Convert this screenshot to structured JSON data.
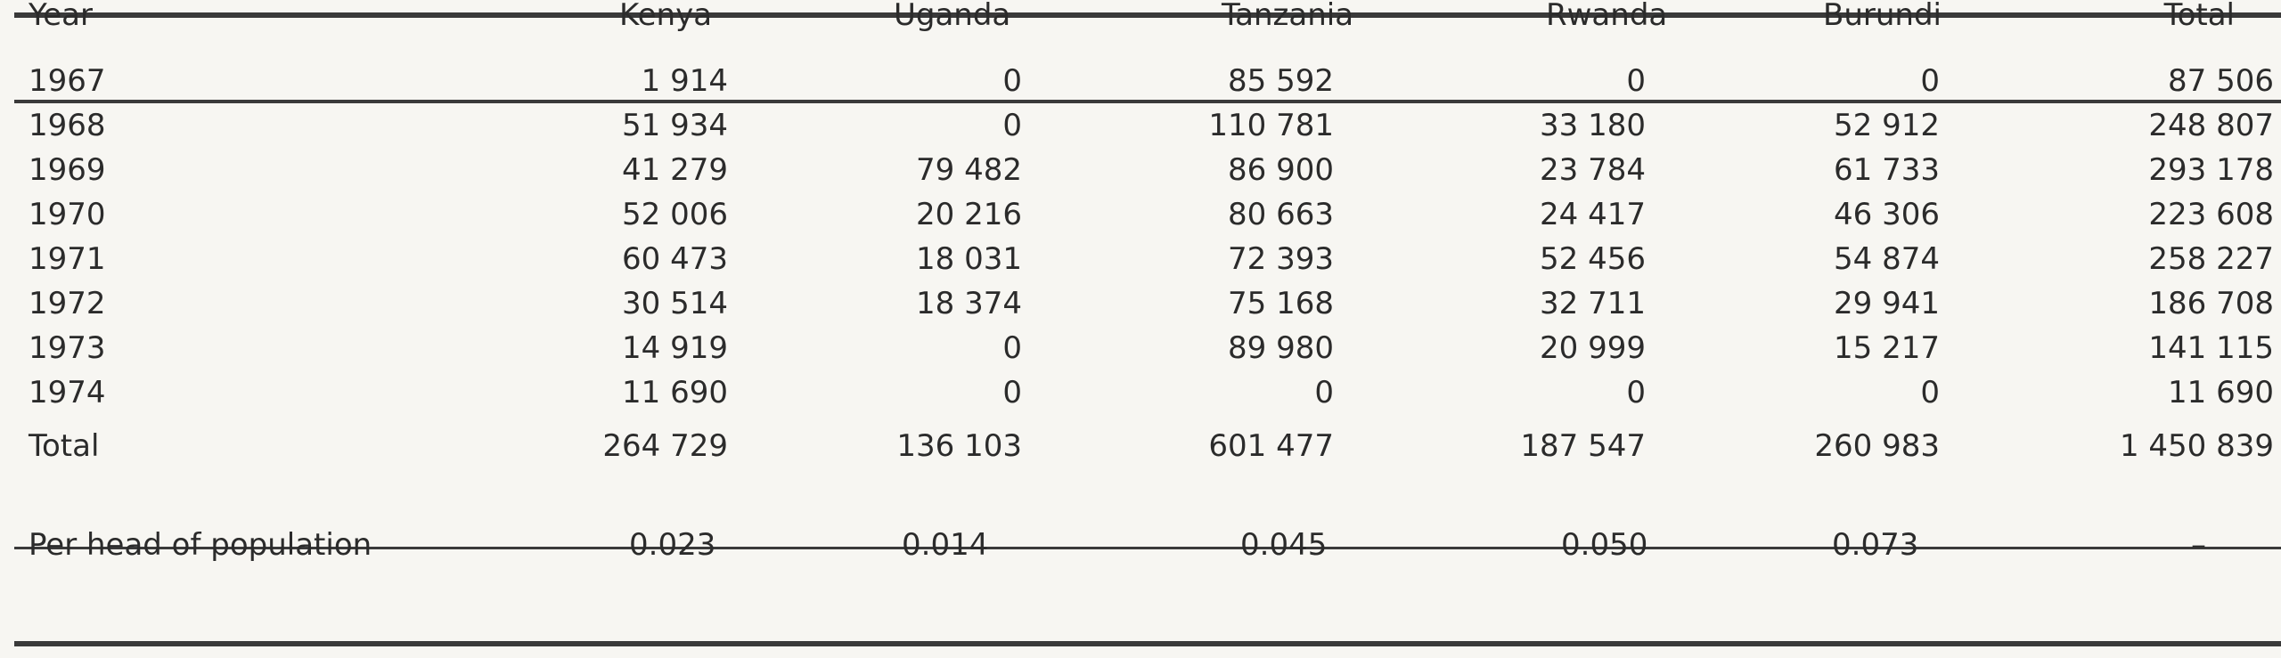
{
  "table": {
    "headers": [
      "Year",
      "Kenya",
      "Uganda",
      "Tanzania",
      "Rwanda",
      "Burundi",
      "Total"
    ],
    "rows": [
      {
        "year": "1967",
        "kenya": "1 914",
        "uganda": "0",
        "tanzania": "85 592",
        "rwanda": "0",
        "burundi": "0",
        "total": "87 506"
      },
      {
        "year": "1968",
        "kenya": "51 934",
        "uganda": "0",
        "tanzania": "110 781",
        "rwanda": "33 180",
        "burundi": "52 912",
        "total": "248 807"
      },
      {
        "year": "1969",
        "kenya": "41 279",
        "uganda": "79 482",
        "tanzania": "86 900",
        "rwanda": "23 784",
        "burundi": "61 733",
        "total": "293 178"
      },
      {
        "year": "1970",
        "kenya": "52 006",
        "uganda": "20 216",
        "tanzania": "80 663",
        "rwanda": "24 417",
        "burundi": "46 306",
        "total": "223 608"
      },
      {
        "year": "1971",
        "kenya": "60 473",
        "uganda": "18 031",
        "tanzania": "72 393",
        "rwanda": "52 456",
        "burundi": "54 874",
        "total": "258 227"
      },
      {
        "year": "1972",
        "kenya": "30 514",
        "uganda": "18 374",
        "tanzania": "75 168",
        "rwanda": "32 711",
        "burundi": "29 941",
        "total": "186 708"
      },
      {
        "year": "1973",
        "kenya": "14 919",
        "uganda": "0",
        "tanzania": "89 980",
        "rwanda": "20 999",
        "burundi": "15 217",
        "total": "141 115"
      },
      {
        "year": "1974",
        "kenya": "11 690",
        "uganda": "0",
        "tanzania": "0",
        "rwanda": "0",
        "burundi": "0",
        "total": "11 690"
      }
    ],
    "total_row": {
      "label": "Total",
      "kenya": "264 729",
      "uganda": "136 103",
      "tanzania": "601 477",
      "rwanda": "187 547",
      "burundi": "260 983",
      "total": "1 450 839"
    },
    "per_head_row": {
      "label": "Per head of population",
      "kenya": "0.023",
      "uganda": "0.014",
      "tanzania": "0.045",
      "rwanda": "0.050",
      "burundi": "0.073",
      "total": "–"
    }
  },
  "colors": {
    "paper": "#f7f6f2",
    "ink": "#2b2b2b",
    "rule": "#3a3a3a"
  }
}
